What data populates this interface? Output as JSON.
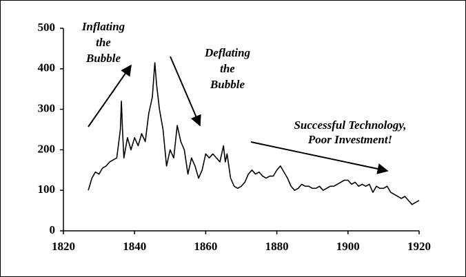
{
  "chart_data": {
    "type": "line",
    "color": "#000000",
    "xlim": [
      1820,
      1920
    ],
    "xticks": [
      1820,
      1840,
      1860,
      1880,
      1900,
      1920
    ],
    "ylim": [
      0,
      500
    ],
    "yticks": [
      0,
      100,
      200,
      300,
      400,
      500
    ],
    "annotations": [
      {
        "lines": [
          "Inflating",
          "the",
          "Bubble"
        ]
      },
      {
        "lines": [
          "Deflating",
          "the",
          "Bubble"
        ]
      },
      {
        "lines": [
          "Successful Technology,",
          "Poor Investment!"
        ]
      }
    ],
    "x": [
      1827,
      1828,
      1829,
      1830,
      1831,
      1832,
      1833,
      1834,
      1835,
      1836,
      1836.3,
      1836.6,
      1837,
      1838,
      1839,
      1840,
      1841,
      1842,
      1843,
      1844,
      1845,
      1845.7,
      1846.2,
      1847,
      1848,
      1849,
      1850,
      1851,
      1852,
      1853,
      1854,
      1855,
      1856,
      1857,
      1858,
      1859,
      1860,
      1861,
      1862,
      1863,
      1864,
      1865,
      1865.5,
      1866,
      1867,
      1868,
      1869,
      1870,
      1871,
      1872,
      1873,
      1874,
      1875,
      1876,
      1877,
      1878,
      1879,
      1880,
      1881,
      1882,
      1883,
      1884,
      1885,
      1886,
      1887,
      1888,
      1889,
      1890,
      1891,
      1892,
      1893,
      1894,
      1895,
      1896,
      1897,
      1898,
      1899,
      1900,
      1901,
      1902,
      1903,
      1904,
      1905,
      1906,
      1907,
      1908,
      1909,
      1910,
      1911,
      1912,
      1913,
      1914,
      1915,
      1916,
      1917,
      1918,
      1919,
      1920
    ],
    "values": [
      100,
      130,
      145,
      140,
      155,
      160,
      170,
      175,
      180,
      250,
      320,
      250,
      180,
      230,
      200,
      230,
      210,
      240,
      220,
      290,
      330,
      415,
      360,
      300,
      250,
      160,
      200,
      180,
      260,
      220,
      200,
      140,
      180,
      160,
      130,
      150,
      190,
      180,
      190,
      180,
      170,
      210,
      170,
      190,
      130,
      110,
      105,
      110,
      120,
      140,
      150,
      140,
      145,
      135,
      130,
      135,
      135,
      150,
      160,
      145,
      130,
      110,
      100,
      105,
      115,
      110,
      110,
      105,
      105,
      110,
      100,
      105,
      110,
      110,
      115,
      120,
      125,
      125,
      115,
      120,
      110,
      115,
      110,
      115,
      95,
      110,
      105,
      105,
      110,
      95,
      90,
      85,
      80,
      85,
      75,
      65,
      70,
      75
    ]
  }
}
